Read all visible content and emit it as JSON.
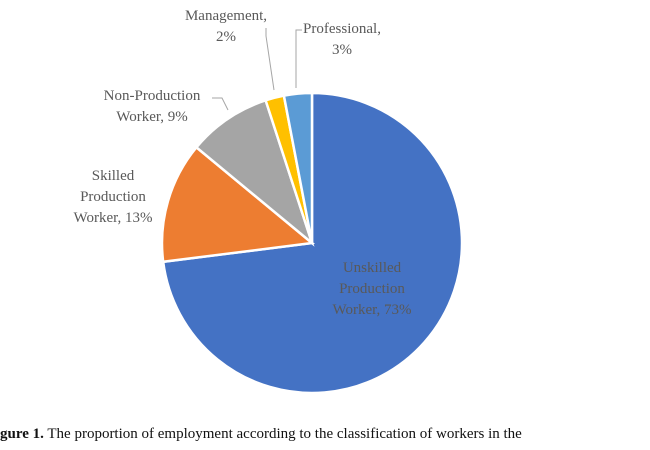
{
  "chart_data": {
    "type": "pie",
    "values": [
      73,
      13,
      9,
      2,
      3
    ],
    "value_labels": [
      "Unskilled Production Worker, 73%",
      "Skilled Production Worker, 13%",
      "Non-Production Worker, 9%",
      "Management, 2%",
      "Professional, 3%"
    ],
    "colors": [
      "#4472c4",
      "#ed7d31",
      "#a5a5a5",
      "#ffc000",
      "#5b9bd5"
    ],
    "caption_label": "gure 1.",
    "caption": "The proportion of employment according to the classification of workers in the"
  }
}
